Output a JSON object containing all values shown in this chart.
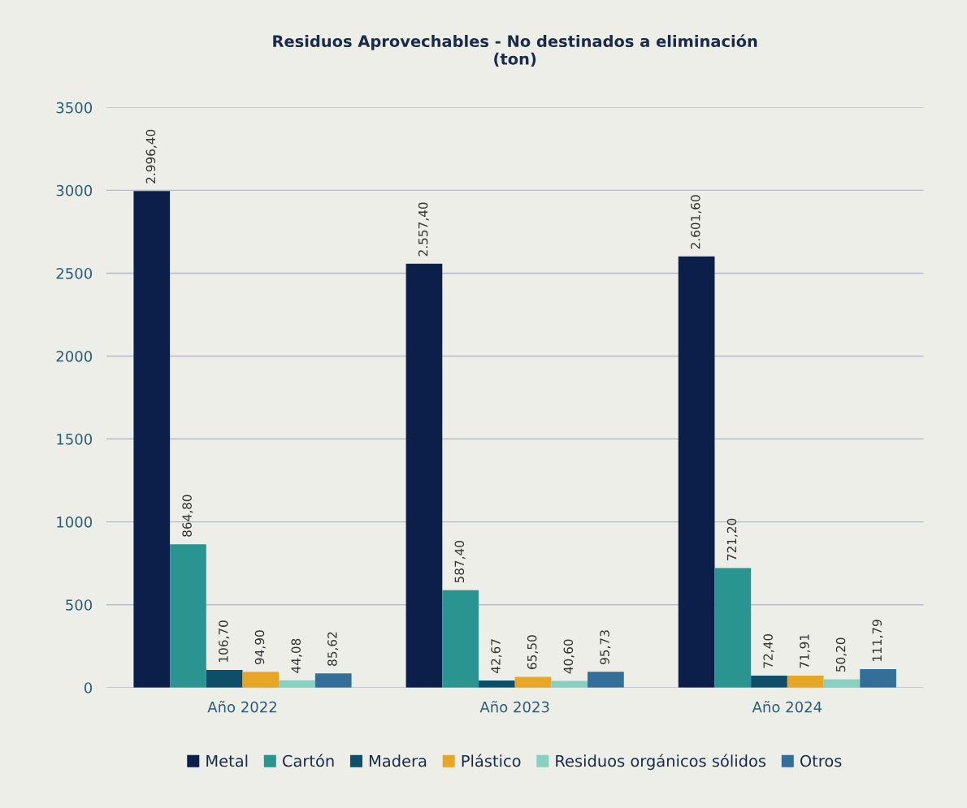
{
  "chart_data": {
    "type": "bar",
    "title": "Residuos Aprovechables - No destinados a eliminación\n(ton)",
    "categories": [
      "Año 2022",
      "Año 2023",
      "Año 2024"
    ],
    "series": [
      {
        "name": "Metal",
        "color": "#0c1f4a",
        "values": [
          2996.4,
          2557.4,
          2601.6
        ],
        "value_labels": [
          "2.996,40",
          "2.557,40",
          "2.601,60"
        ]
      },
      {
        "name": "Cartón",
        "color": "#2a9590",
        "values": [
          864.8,
          587.4,
          721.2
        ],
        "value_labels": [
          "864,80",
          "587,40",
          "721,20"
        ]
      },
      {
        "name": "Madera",
        "color": "#0d4e6a",
        "values": [
          106.7,
          42.67,
          72.4
        ],
        "value_labels": [
          "106,70",
          "42,67",
          "72,40"
        ]
      },
      {
        "name": "Plástico",
        "color": "#e8a626",
        "values": [
          94.9,
          65.5,
          71.91
        ],
        "value_labels": [
          "94,90",
          "65,50",
          "71,91"
        ]
      },
      {
        "name": "Residuos orgánicos sólidos",
        "color": "#88d0c0",
        "values": [
          44.08,
          40.6,
          50.2
        ],
        "value_labels": [
          "44,08",
          "40,60",
          "50,20"
        ]
      },
      {
        "name": "Otros",
        "color": "#336f99",
        "values": [
          85.62,
          95.73,
          111.79
        ],
        "value_labels": [
          "85,62",
          "95,73",
          "111,79"
        ]
      }
    ],
    "ylim": [
      0,
      3500
    ],
    "yticks": [
      0,
      500,
      1000,
      1500,
      2000,
      2500,
      3000,
      3500
    ],
    "grid": "y",
    "legend": "bottom"
  }
}
